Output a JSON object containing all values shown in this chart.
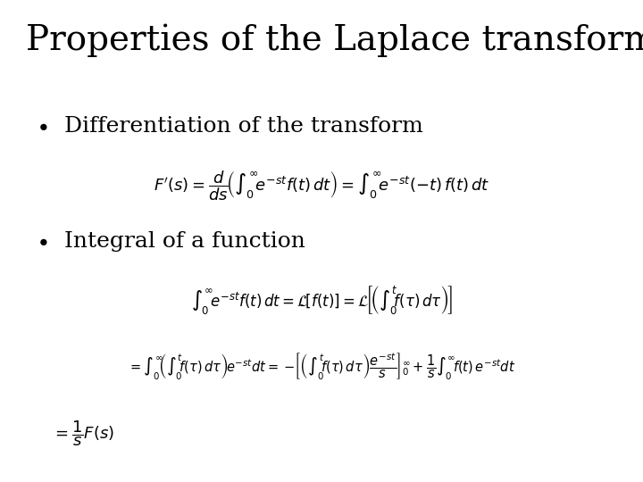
{
  "title": "Properties of the Laplace transform",
  "background_color": "#ffffff",
  "text_color": "#000000",
  "title_fontsize": 28,
  "bullet_fontsize": 18,
  "bullet1": "Differentiation of the transform",
  "bullet2": "Integral of a function",
  "eq1": "$F'(s) = \\dfrac{d}{ds}\\!\\left(\\int_0^{\\infty}\\! e^{-st} f(t)\\,dt\\right) = \\int_0^{\\infty}\\! e^{-st}(-t)\\,f(t)\\,dt$",
  "eq2": "$\\int_0^{\\infty}\\! e^{-st} f(t)\\,dt = \\mathcal{L}\\!\\left[f(t)\\right]= \\mathcal{L}\\!\\left[\\!\\left(\\int_0^{t}\\! f(\\tau)\\,d\\tau\\right)\\!\\right]$",
  "eq3": "$= \\int_0^{\\infty}\\!\\!\\left(\\int_0^{t}\\! f(\\tau)\\,d\\tau\\right)\\!e^{-st}dt = -\\!\\left[\\left(\\int_0^{t}\\! f(\\tau)\\,d\\tau\\right)\\dfrac{e^{-st}}{s}\\right]_0^{\\infty} + \\dfrac{1}{s}\\int_0^{\\infty}\\! f(t)\\,e^{-st}dt$",
  "eq4": "$= \\dfrac{1}{s}F(s)$"
}
